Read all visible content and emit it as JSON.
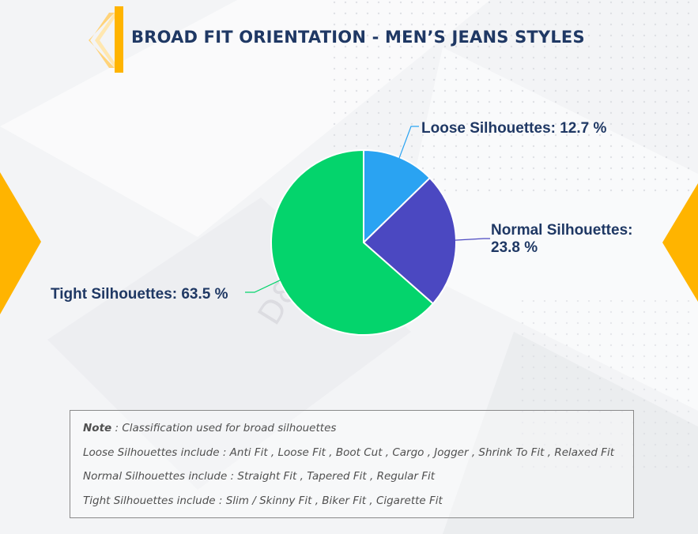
{
  "title": "BROAD FIT ORIENTATION - MEN’S JEANS STYLES",
  "colors": {
    "accent": "#ffb400",
    "title": "#1f3864",
    "loose": "#2aa3f2",
    "normal": "#4b48c1",
    "tight": "#04d46c"
  },
  "chart_data": {
    "type": "pie",
    "slices": [
      {
        "name": "Loose Silhouettes",
        "value": 12.7,
        "label": "Loose Silhouettes: 12.7 %",
        "color": "#2aa3f2"
      },
      {
        "name": "Normal Silhouettes",
        "value": 23.8,
        "label_line1": "Normal Silhouettes:",
        "label_line2": "23.8 %",
        "color": "#4b48c1"
      },
      {
        "name": "Tight Silhouettes",
        "value": 63.5,
        "label": "Tight Silhouettes: 63.5 %",
        "color": "#04d46c"
      }
    ],
    "start_angle_deg": 0,
    "direction": "clockwise"
  },
  "note": {
    "line1_key": "Note",
    "line1_text": " : Classification used for broad silhouettes",
    "line2": "Loose Silhouettes include : Anti Fit , Loose Fit , Boot Cut , Cargo , Jogger , Shrink To Fit , Relaxed Fit",
    "line3": "Normal Silhouettes include : Straight Fit , Tapered Fit , Regular Fit",
    "line4": "Tight Silhouettes include : Slim / Skinny Fit , Biker Fit , Cigarette Fit"
  },
  "watermark": "D&J Reports"
}
